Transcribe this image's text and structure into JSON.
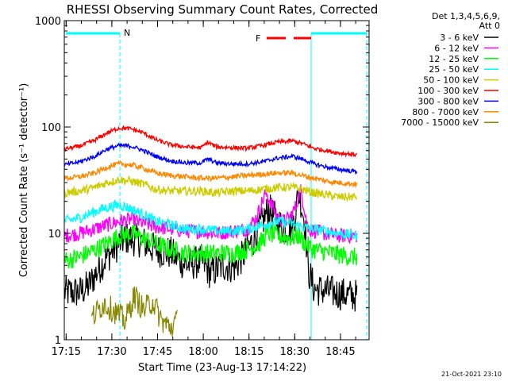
{
  "chart_data": {
    "type": "line",
    "title": "RHESSI Observing Summary Count Rates, Corrected",
    "xlabel": "Start Time (23-Aug-13 17:14:22)",
    "ylabel": "Corrected Count Rate (s⁻¹ detector⁻¹)",
    "yscale": "log",
    "ylim": [
      1,
      1000
    ],
    "xlim_minutes": [
      0,
      100
    ],
    "x_tick_labels": [
      "17:15",
      "17:30",
      "17:45",
      "18:00",
      "18:15",
      "18:30",
      "18:45"
    ],
    "x_tick_minutes": [
      0.6,
      15.6,
      30.6,
      45.6,
      60.6,
      75.6,
      90.6
    ],
    "y_tick_labels": [
      "1",
      "10",
      "100",
      "1000"
    ],
    "y_tick_values": [
      1,
      10,
      100,
      1000
    ],
    "grid": false,
    "legend_position": "right",
    "legend_header": [
      "Det 1,3,4,5,6,9,",
      "Att 0"
    ],
    "annotations": {
      "night_label": "N",
      "flare_label": "F"
    },
    "timestamp": "21-Oct-2021 23:10",
    "series": [
      {
        "name": "3 - 6 keV",
        "color": "#000000",
        "points": [
          [
            0,
            2.8
          ],
          [
            5,
            2.8
          ],
          [
            8,
            3.2
          ],
          [
            11,
            4.5
          ],
          [
            14,
            6
          ],
          [
            17,
            7.5
          ],
          [
            20,
            9
          ],
          [
            25,
            8.5
          ],
          [
            30,
            7
          ],
          [
            35,
            6.5
          ],
          [
            40,
            5
          ],
          [
            45,
            5.5
          ],
          [
            48,
            4.2
          ],
          [
            52,
            5
          ],
          [
            56,
            4.8
          ],
          [
            60,
            7
          ],
          [
            64,
            11
          ],
          [
            67,
            17
          ],
          [
            70,
            13
          ],
          [
            72,
            11
          ],
          [
            75,
            12
          ],
          [
            77,
            25
          ],
          [
            79,
            12
          ],
          [
            80,
            4.5
          ],
          [
            82,
            3
          ],
          [
            88,
            2.8
          ],
          [
            94,
            2.6
          ],
          [
            96,
            2.6
          ]
        ]
      },
      {
        "name": "6 - 12 keV",
        "color": "#ff00ff",
        "points": [
          [
            0,
            9.5
          ],
          [
            5,
            10
          ],
          [
            10,
            11
          ],
          [
            14,
            12
          ],
          [
            18,
            13
          ],
          [
            22,
            13.5
          ],
          [
            26,
            12.5
          ],
          [
            30,
            11.5
          ],
          [
            35,
            11
          ],
          [
            40,
            10.5
          ],
          [
            45,
            10.5
          ],
          [
            50,
            10
          ],
          [
            55,
            10.5
          ],
          [
            60,
            11
          ],
          [
            63,
            14
          ],
          [
            66,
            24
          ],
          [
            68,
            19
          ],
          [
            70,
            14
          ],
          [
            72,
            13
          ],
          [
            74,
            14
          ],
          [
            76,
            18
          ],
          [
            77.5,
            26
          ],
          [
            79,
            16
          ],
          [
            80,
            11
          ],
          [
            85,
            10
          ],
          [
            90,
            9.5
          ],
          [
            96,
            9.5
          ]
        ]
      },
      {
        "name": "12 - 25 keV",
        "color": "#00ff00",
        "points": [
          [
            0,
            5.5
          ],
          [
            5,
            6
          ],
          [
            10,
            7
          ],
          [
            14,
            8
          ],
          [
            18,
            9.5
          ],
          [
            22,
            10
          ],
          [
            26,
            9
          ],
          [
            30,
            8
          ],
          [
            35,
            7
          ],
          [
            40,
            6.5
          ],
          [
            45,
            6.5
          ],
          [
            50,
            6.5
          ],
          [
            55,
            6.5
          ],
          [
            60,
            7
          ],
          [
            64,
            8
          ],
          [
            67,
            10
          ],
          [
            70,
            9.5
          ],
          [
            74,
            9
          ],
          [
            77,
            9.5
          ],
          [
            79,
            8
          ],
          [
            82,
            7
          ],
          [
            88,
            6.5
          ],
          [
            94,
            6
          ],
          [
            96,
            6
          ]
        ]
      },
      {
        "name": "25 - 50 keV",
        "color": "#00ffff",
        "points": [
          [
            0,
            13
          ],
          [
            5,
            14
          ],
          [
            10,
            16
          ],
          [
            14,
            17.5
          ],
          [
            18,
            18.5
          ],
          [
            22,
            17
          ],
          [
            26,
            15
          ],
          [
            30,
            13
          ],
          [
            35,
            12
          ],
          [
            40,
            11
          ],
          [
            45,
            11
          ],
          [
            50,
            10.5
          ],
          [
            55,
            10.5
          ],
          [
            60,
            11
          ],
          [
            65,
            12
          ],
          [
            70,
            13
          ],
          [
            74,
            12.5
          ],
          [
            78,
            11.5
          ],
          [
            82,
            11
          ],
          [
            86,
            10.5
          ],
          [
            90,
            10
          ],
          [
            96,
            9.5
          ]
        ]
      },
      {
        "name": "50 - 100 keV",
        "color": "#cccc00",
        "points": [
          [
            0,
            24
          ],
          [
            5,
            25
          ],
          [
            10,
            27
          ],
          [
            14,
            30
          ],
          [
            18,
            32
          ],
          [
            22,
            31
          ],
          [
            26,
            29
          ],
          [
            30,
            26
          ],
          [
            35,
            25
          ],
          [
            40,
            25
          ],
          [
            45,
            25
          ],
          [
            50,
            24
          ],
          [
            55,
            25
          ],
          [
            60,
            25
          ],
          [
            65,
            26
          ],
          [
            70,
            27
          ],
          [
            75,
            27
          ],
          [
            78,
            26
          ],
          [
            82,
            24
          ],
          [
            86,
            23
          ],
          [
            90,
            22
          ],
          [
            96,
            22
          ]
        ]
      },
      {
        "name": "100 - 300 keV",
        "color": "#ff0000",
        "points": [
          [
            0,
            62
          ],
          [
            5,
            66
          ],
          [
            10,
            75
          ],
          [
            14,
            88
          ],
          [
            18,
            98
          ],
          [
            22,
            96
          ],
          [
            26,
            88
          ],
          [
            30,
            76
          ],
          [
            35,
            68
          ],
          [
            40,
            65
          ],
          [
            45,
            64
          ],
          [
            47,
            72
          ],
          [
            50,
            65
          ],
          [
            55,
            64
          ],
          [
            60,
            63
          ],
          [
            65,
            67
          ],
          [
            70,
            72
          ],
          [
            75,
            74
          ],
          [
            78,
            70
          ],
          [
            82,
            63
          ],
          [
            86,
            60
          ],
          [
            90,
            57
          ],
          [
            96,
            55
          ]
        ]
      },
      {
        "name": "300 - 800 keV",
        "color": "#0000ff",
        "points": [
          [
            0,
            44
          ],
          [
            5,
            47
          ],
          [
            10,
            53
          ],
          [
            14,
            62
          ],
          [
            18,
            67
          ],
          [
            22,
            66
          ],
          [
            26,
            60
          ],
          [
            30,
            53
          ],
          [
            35,
            48
          ],
          [
            40,
            46
          ],
          [
            45,
            46
          ],
          [
            47,
            50
          ],
          [
            50,
            46
          ],
          [
            55,
            45
          ],
          [
            60,
            45
          ],
          [
            65,
            47
          ],
          [
            70,
            51
          ],
          [
            75,
            53
          ],
          [
            78,
            50
          ],
          [
            82,
            45
          ],
          [
            86,
            42
          ],
          [
            90,
            40
          ],
          [
            96,
            38
          ]
        ]
      },
      {
        "name": "800 - 7000 keV",
        "color": "#ff8800",
        "points": [
          [
            0,
            33
          ],
          [
            5,
            34
          ],
          [
            10,
            37
          ],
          [
            14,
            42
          ],
          [
            18,
            45
          ],
          [
            22,
            44
          ],
          [
            26,
            41
          ],
          [
            30,
            37
          ],
          [
            35,
            35
          ],
          [
            40,
            34
          ],
          [
            45,
            33
          ],
          [
            50,
            33
          ],
          [
            55,
            34
          ],
          [
            60,
            35
          ],
          [
            65,
            36
          ],
          [
            70,
            37
          ],
          [
            75,
            37
          ],
          [
            78,
            35
          ],
          [
            82,
            33
          ],
          [
            86,
            31
          ],
          [
            90,
            30
          ],
          [
            96,
            29
          ]
        ]
      },
      {
        "name": "7000 - 15000 keV",
        "color": "#888800",
        "points": [
          [
            9,
            1.6
          ],
          [
            13,
            2.2
          ],
          [
            17,
            1.8
          ],
          [
            20,
            1.5
          ],
          [
            23,
            2.6
          ],
          [
            26,
            1.9
          ],
          [
            29,
            2.3
          ],
          [
            32,
            1.5
          ],
          [
            35,
            1.3
          ],
          [
            37,
            1.5
          ]
        ]
      }
    ]
  }
}
